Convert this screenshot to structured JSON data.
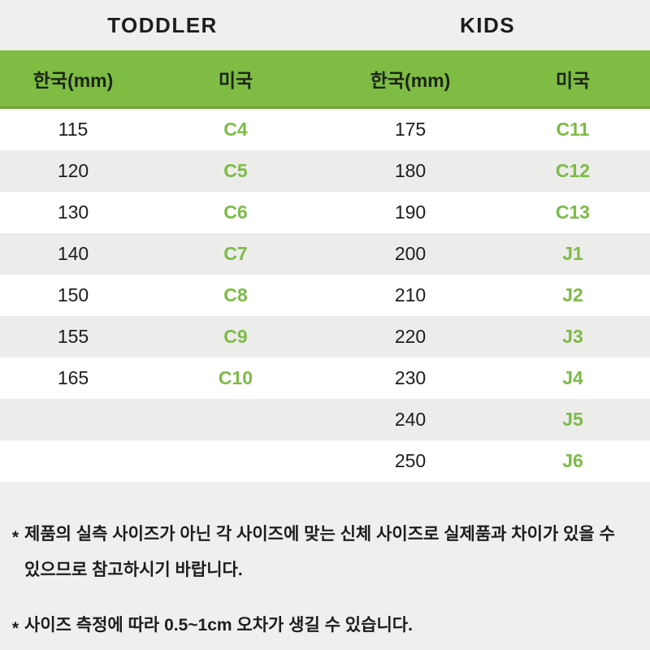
{
  "colors": {
    "background": "#EFEFED",
    "row_stripe": "#ECECEA",
    "row_white": "#FFFFFF",
    "header_green": "#7EBC44",
    "header_green_border": "#6CA236",
    "size_code_green": "#7CBB47",
    "text_dark": "#1D1D1B"
  },
  "chart_data": {
    "type": "table",
    "sections": [
      {
        "name": "TODDLER",
        "columns": [
          "한국(mm)",
          "미국"
        ],
        "rows": [
          [
            "115",
            "C4"
          ],
          [
            "120",
            "C5"
          ],
          [
            "130",
            "C6"
          ],
          [
            "140",
            "C7"
          ],
          [
            "150",
            "C8"
          ],
          [
            "155",
            "C9"
          ],
          [
            "165",
            "C10"
          ]
        ]
      },
      {
        "name": "KIDS",
        "columns": [
          "한국(mm)",
          "미국"
        ],
        "rows": [
          [
            "175",
            "C11"
          ],
          [
            "180",
            "C12"
          ],
          [
            "190",
            "C13"
          ],
          [
            "200",
            "J1"
          ],
          [
            "210",
            "J2"
          ],
          [
            "220",
            "J3"
          ],
          [
            "230",
            "J4"
          ],
          [
            "240",
            "J5"
          ],
          [
            "250",
            "J6"
          ]
        ]
      }
    ]
  },
  "footnotes": {
    "marker": "*",
    "items": [
      "제품의 실측 사이즈가 아닌 각 사이즈에 맞는 신체 사이즈로 실제품과 차이가 있을 수 있으므로 참고하시기 바랍니다.",
      "사이즈 측정에 따라 0.5~1cm 오차가 생길 수 있습니다."
    ]
  }
}
